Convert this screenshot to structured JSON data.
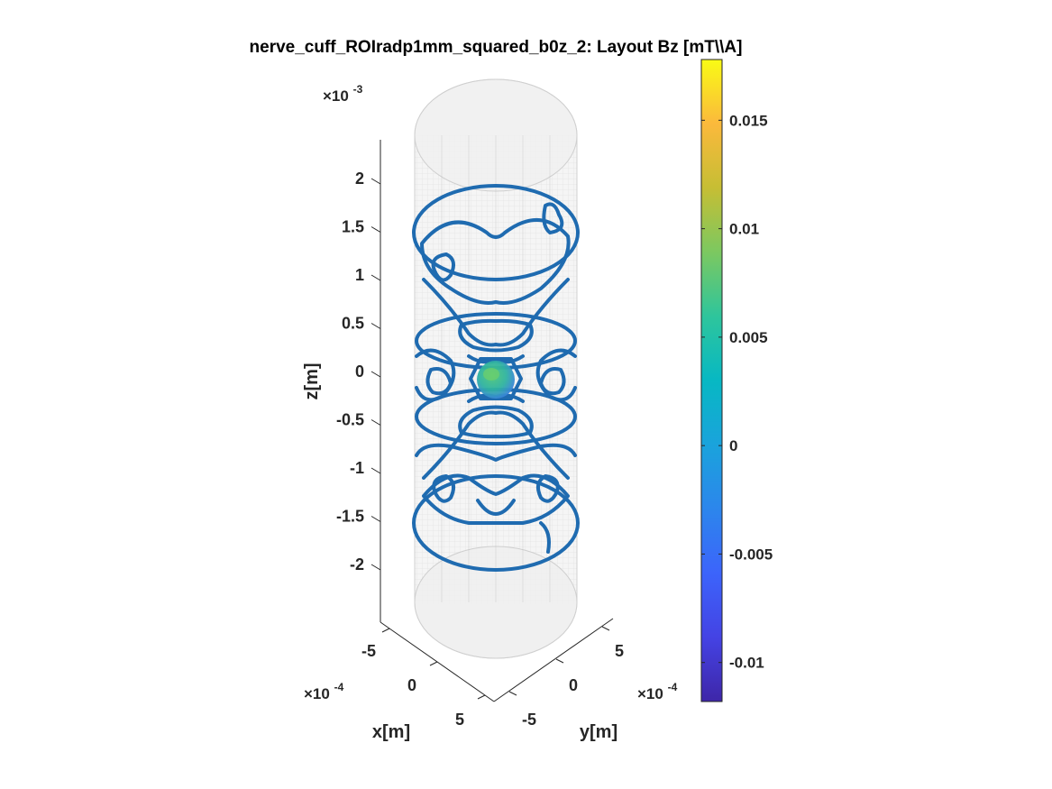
{
  "chart_data": {
    "type": "3d-surface-coil-layout",
    "title": "nerve_cuff_ROIradp1mm_squared_b0z_2: Layout Bz [mT\\\\A]",
    "xlabel": "x[m]",
    "ylabel": "y[m]",
    "zlabel": "z[m]",
    "x_ticks": [
      "-5",
      "0",
      "5"
    ],
    "y_ticks": [
      "5",
      "0",
      "-5"
    ],
    "z_ticks": [
      "2",
      "1.5",
      "1",
      "0.5",
      "0",
      "-0.5",
      "-1",
      "-1.5",
      "-2"
    ],
    "x_exponent": {
      "base": "×10",
      "power": "-4"
    },
    "y_exponent": {
      "base": "×10",
      "power": "-4"
    },
    "z_exponent": {
      "base": "×10",
      "power": "-3"
    },
    "colorbar": {
      "ticks": [
        "0.015",
        "0.01",
        "0.005",
        "0",
        "-0.005",
        "-0.01"
      ],
      "tick_values": [
        0.015,
        0.01,
        0.005,
        0,
        -0.005,
        -0.01
      ],
      "range": [
        -0.0118,
        0.0178
      ],
      "colormap": "parula"
    },
    "colors": {
      "coil_wire": "#1f6bb0",
      "cylinder_surface": "#d9d9d9",
      "roi_sphere": "#2fb3a0"
    }
  }
}
